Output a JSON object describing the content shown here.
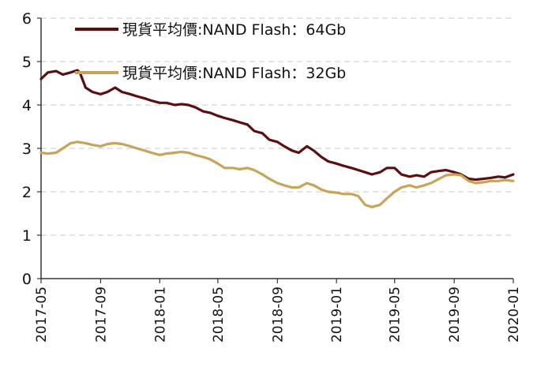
{
  "chart_data": {
    "type": "line",
    "title": "",
    "xlabel": "",
    "ylabel": "",
    "ylim": [
      0,
      6
    ],
    "yticks": [
      "0",
      "1",
      "2",
      "3",
      "4",
      "5",
      "6"
    ],
    "xticks": [
      "2017-05",
      "2017-09",
      "2018-01",
      "2018-05",
      "2018-09",
      "2019-01",
      "2019-05",
      "2019-09",
      "2020-01"
    ],
    "grid": "horizontal dashed",
    "legend_position": "top-left",
    "series": [
      {
        "name": "現貨平均價:NAND Flash：64Gb",
        "color": "#5b0e0e",
        "x": [
          "2017-05-01",
          "2017-05-15",
          "2017-06-01",
          "2017-06-15",
          "2017-07-01",
          "2017-07-15",
          "2017-07-20",
          "2017-08-01",
          "2017-08-15",
          "2017-09-01",
          "2017-09-15",
          "2017-10-01",
          "2017-10-15",
          "2017-11-01",
          "2017-11-15",
          "2017-12-01",
          "2017-12-15",
          "2018-01-01",
          "2018-01-15",
          "2018-02-01",
          "2018-02-15",
          "2018-03-01",
          "2018-03-15",
          "2018-04-01",
          "2018-04-15",
          "2018-05-01",
          "2018-05-15",
          "2018-06-01",
          "2018-06-15",
          "2018-07-01",
          "2018-07-15",
          "2018-08-01",
          "2018-08-15",
          "2018-09-01",
          "2018-09-15",
          "2018-10-01",
          "2018-10-15",
          "2018-11-01",
          "2018-11-15",
          "2018-12-01",
          "2018-12-15",
          "2019-01-01",
          "2019-01-15",
          "2019-02-01",
          "2019-02-15",
          "2019-03-01",
          "2019-03-15",
          "2019-04-01",
          "2019-04-15",
          "2019-05-01",
          "2019-05-15",
          "2019-06-01",
          "2019-06-15",
          "2019-07-01",
          "2019-07-15",
          "2019-08-01",
          "2019-08-15",
          "2019-09-01",
          "2019-09-15",
          "2019-10-01",
          "2019-10-15",
          "2019-11-01",
          "2019-11-15",
          "2019-12-01",
          "2019-12-15",
          "2020-01-01"
        ],
        "values": [
          4.6,
          4.75,
          4.78,
          4.7,
          4.75,
          4.8,
          4.75,
          4.4,
          4.3,
          4.25,
          4.3,
          4.4,
          4.3,
          4.25,
          4.2,
          4.15,
          4.1,
          4.05,
          4.05,
          4.0,
          4.02,
          4.0,
          3.95,
          3.85,
          3.82,
          3.75,
          3.7,
          3.65,
          3.6,
          3.55,
          3.4,
          3.35,
          3.2,
          3.15,
          3.05,
          2.95,
          2.9,
          3.05,
          2.95,
          2.8,
          2.7,
          2.65,
          2.6,
          2.55,
          2.5,
          2.45,
          2.4,
          2.45,
          2.55,
          2.55,
          2.4,
          2.35,
          2.38,
          2.35,
          2.45,
          2.48,
          2.5,
          2.45,
          2.4,
          2.3,
          2.28,
          2.3,
          2.32,
          2.35,
          2.33,
          2.4
        ]
      },
      {
        "name": "現貨平均價:NAND Flash：32Gb",
        "color": "#c8a45b",
        "x": [
          "2017-05-01",
          "2017-05-15",
          "2017-06-01",
          "2017-06-15",
          "2017-07-01",
          "2017-07-15",
          "2017-08-01",
          "2017-08-15",
          "2017-09-01",
          "2017-09-15",
          "2017-10-01",
          "2017-10-15",
          "2017-11-01",
          "2017-11-15",
          "2017-12-01",
          "2017-12-15",
          "2018-01-01",
          "2018-01-15",
          "2018-02-01",
          "2018-02-15",
          "2018-03-01",
          "2018-03-15",
          "2018-04-01",
          "2018-04-15",
          "2018-05-01",
          "2018-05-15",
          "2018-06-01",
          "2018-06-15",
          "2018-07-01",
          "2018-07-15",
          "2018-08-01",
          "2018-08-15",
          "2018-09-01",
          "2018-09-15",
          "2018-10-01",
          "2018-10-15",
          "2018-11-01",
          "2018-11-15",
          "2018-12-01",
          "2018-12-15",
          "2019-01-01",
          "2019-01-15",
          "2019-02-01",
          "2019-02-15",
          "2019-03-01",
          "2019-03-15",
          "2019-04-01",
          "2019-04-15",
          "2019-05-01",
          "2019-05-15",
          "2019-06-01",
          "2019-06-15",
          "2019-07-01",
          "2019-07-15",
          "2019-08-01",
          "2019-08-15",
          "2019-09-01",
          "2019-09-15",
          "2019-10-01",
          "2019-10-15",
          "2019-11-01",
          "2019-11-15",
          "2019-12-01",
          "2019-12-15",
          "2020-01-01"
        ],
        "values": [
          2.9,
          2.88,
          2.9,
          3.0,
          3.12,
          3.15,
          3.12,
          3.08,
          3.05,
          3.1,
          3.12,
          3.1,
          3.05,
          3.0,
          2.95,
          2.9,
          2.85,
          2.88,
          2.9,
          2.92,
          2.9,
          2.85,
          2.8,
          2.75,
          2.65,
          2.55,
          2.55,
          2.52,
          2.55,
          2.5,
          2.4,
          2.3,
          2.2,
          2.15,
          2.1,
          2.1,
          2.2,
          2.15,
          2.05,
          2.0,
          1.98,
          1.95,
          1.95,
          1.9,
          1.7,
          1.65,
          1.7,
          1.85,
          2.0,
          2.1,
          2.15,
          2.1,
          2.15,
          2.2,
          2.3,
          2.38,
          2.4,
          2.38,
          2.25,
          2.2,
          2.22,
          2.25,
          2.25,
          2.27,
          2.25
        ]
      }
    ]
  }
}
